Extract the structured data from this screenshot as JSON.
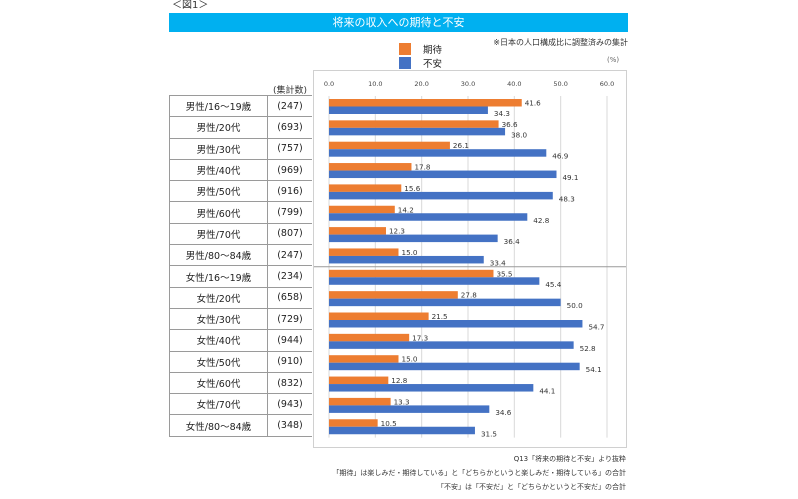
{
  "figure_label": "＜図1＞",
  "title": "将来の収入への期待と不安",
  "note_top": "※日本の人口構成比に調整済みの集計",
  "unit": "(%)",
  "count_header": "(集計数)",
  "colors": {
    "expect": "#ED7D31",
    "anxiety": "#4472C4",
    "header": "#00B0F0"
  },
  "legend": [
    {
      "label": "期待",
      "color": "#ED7D31"
    },
    {
      "label": "不安",
      "color": "#4472C4"
    }
  ],
  "rows": [
    {
      "group": "男性/16～19歳",
      "count": "(247)"
    },
    {
      "group": "男性/20代",
      "count": "(693)"
    },
    {
      "group": "男性/30代",
      "count": "(757)"
    },
    {
      "group": "男性/40代",
      "count": "(969)"
    },
    {
      "group": "男性/50代",
      "count": "(916)"
    },
    {
      "group": "男性/60代",
      "count": "(799)"
    },
    {
      "group": "男性/70代",
      "count": "(807)"
    },
    {
      "group": "男性/80～84歳",
      "count": "(247)"
    },
    {
      "group": "女性/16～19歳",
      "count": "(234)"
    },
    {
      "group": "女性/20代",
      "count": "(658)"
    },
    {
      "group": "女性/30代",
      "count": "(729)"
    },
    {
      "group": "女性/40代",
      "count": "(944)"
    },
    {
      "group": "女性/50代",
      "count": "(910)"
    },
    {
      "group": "女性/60代",
      "count": "(832)"
    },
    {
      "group": "女性/70代",
      "count": "(943)"
    },
    {
      "group": "女性/80～84歳",
      "count": "(348)"
    }
  ],
  "chart_data": {
    "type": "bar",
    "orientation": "horizontal",
    "title": "将来の収入への期待と不安",
    "xlabel": "(%)",
    "ylabel": "",
    "xlim": [
      0,
      60
    ],
    "xticks": [
      "0.0",
      "10.0",
      "20.0",
      "30.0",
      "40.0",
      "50.0",
      "60.0"
    ],
    "grid": true,
    "legend_position": "top-center",
    "categories": [
      "男性/16～19歳",
      "男性/20代",
      "男性/30代",
      "男性/40代",
      "男性/50代",
      "男性/60代",
      "男性/70代",
      "男性/80～84歳",
      "女性/16～19歳",
      "女性/20代",
      "女性/30代",
      "女性/40代",
      "女性/50代",
      "女性/60代",
      "女性/70代",
      "女性/80～84歳"
    ],
    "series": [
      {
        "name": "期待",
        "values": [
          41.6,
          36.6,
          26.1,
          17.8,
          15.6,
          14.2,
          12.3,
          15.0,
          35.5,
          27.8,
          21.5,
          17.3,
          15.0,
          12.8,
          13.3,
          10.5
        ]
      },
      {
        "name": "不安",
        "values": [
          34.3,
          38.0,
          46.9,
          49.1,
          48.3,
          42.8,
          36.4,
          33.4,
          45.4,
          50.0,
          54.7,
          52.8,
          54.1,
          44.1,
          34.6,
          31.5
        ]
      }
    ]
  },
  "footnotes": [
    "Q13「将来の期待と不安」より抜粋",
    "「期待」は楽しみだ・期待している」と「どちらかというと楽しみだ・期待している」の合計",
    "「不安」は「不安だ」と「どちらかというと不安だ」の合計"
  ]
}
